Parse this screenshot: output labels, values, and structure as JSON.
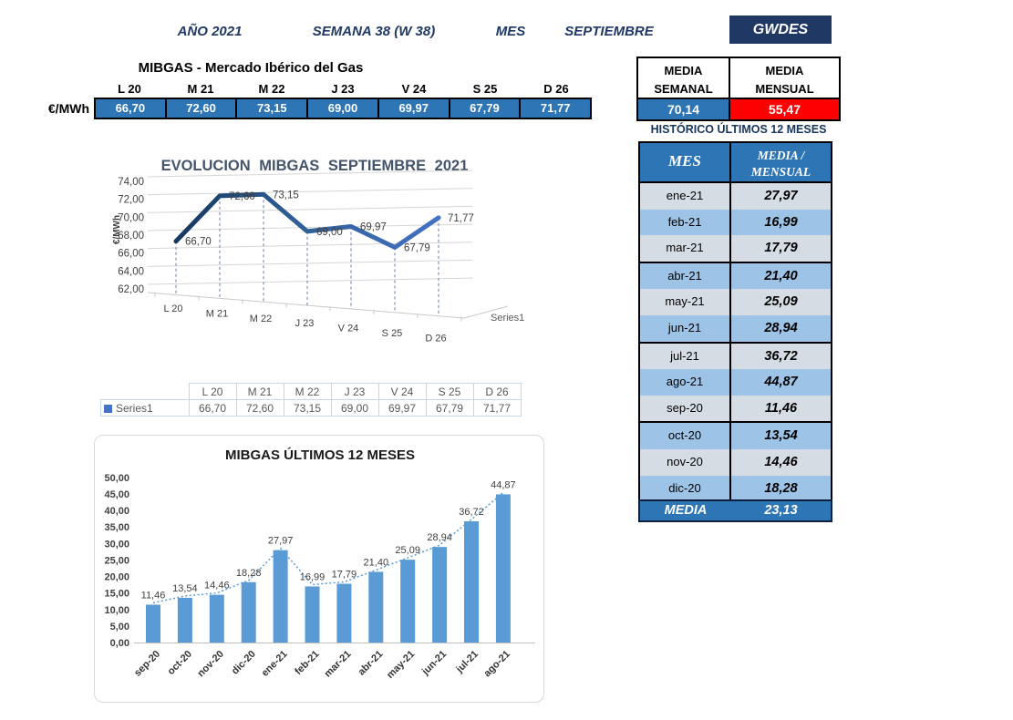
{
  "header": {
    "year": "AÑO 2021",
    "week": "SEMANA 38 (W 38)",
    "month_label": "MES",
    "month": "SEPTIEMBRE",
    "brand": "GWDES"
  },
  "weekly": {
    "title": "MIBGAS - Mercado Ibérico del Gas",
    "unit": "€/MWh",
    "days": [
      "L 20",
      "M 21",
      "M 22",
      "J 23",
      "V 24",
      "S 25",
      "D 26"
    ],
    "values": [
      "66,70",
      "72,60",
      "73,15",
      "69,00",
      "69,97",
      "67,79",
      "71,77"
    ]
  },
  "summary": {
    "weekly_l1": "MEDIA",
    "weekly_l2": "SEMANAL",
    "monthly_l1": "MEDIA",
    "monthly_l2": "MENSUAL",
    "weekly_value": "70,14",
    "monthly_value": "55,47"
  },
  "historic": {
    "title": "HISTÓRICO ÚLTIMOS 12 MESES",
    "col_mes": "MES",
    "col_media_l1": "MEDIA /",
    "col_media_l2": "MENSUAL",
    "rows": [
      {
        "month": "ene-21",
        "value": "27,97"
      },
      {
        "month": "feb-21",
        "value": "16,99"
      },
      {
        "month": "mar-21",
        "value": "17,79"
      },
      {
        "month": "abr-21",
        "value": "21,40"
      },
      {
        "month": "may-21",
        "value": "25,09"
      },
      {
        "month": "jun-21",
        "value": "28,94"
      },
      {
        "month": "jul-21",
        "value": "36,72"
      },
      {
        "month": "ago-21",
        "value": "44,87"
      },
      {
        "month": "sep-20",
        "value": "11,46"
      },
      {
        "month": "oct-20",
        "value": "13,54"
      },
      {
        "month": "nov-20",
        "value": "14,46"
      },
      {
        "month": "dic-20",
        "value": "18,28"
      }
    ],
    "media_label": "MEDIA",
    "media_value": "23,13"
  },
  "series_table": {
    "legend": "Series1",
    "days": [
      "L 20",
      "M 21",
      "M 22",
      "J 23",
      "V 24",
      "S 25",
      "D 26"
    ],
    "values": [
      "66,70",
      "72,60",
      "73,15",
      "69,00",
      "69,97",
      "67,79",
      "71,77"
    ]
  },
  "chart_data": [
    {
      "type": "line",
      "style": "3d-line",
      "title": "EVOLUCION MIBGAS SEPTIEMBRE 2021",
      "ylabel": "€/MWh",
      "categories": [
        "L 20",
        "M 21",
        "M 22",
        "J 23",
        "V 24",
        "S 25",
        "D 26"
      ],
      "series": [
        {
          "name": "Series1",
          "values": [
            66.7,
            72.6,
            73.15,
            69.0,
            69.97,
            67.79,
            71.77
          ]
        }
      ],
      "point_labels": [
        "66,70",
        "72,60",
        "73,15",
        "69,00",
        "69,97",
        "67,79",
        "71,77"
      ],
      "ylim": [
        62,
        74
      ],
      "ytick_step": 2,
      "legend": "Series1",
      "legend_position": "right",
      "grid": true
    },
    {
      "type": "bar",
      "title": "MIBGAS ÚLTIMOS 12 MESES",
      "categories": [
        "sep-20",
        "oct-20",
        "nov-20",
        "dic-20",
        "ene-21",
        "feb-21",
        "mar-21",
        "abr-21",
        "may-21",
        "jun-21",
        "jul-21",
        "ago-21"
      ],
      "values": [
        11.46,
        13.54,
        14.46,
        18.28,
        27.97,
        16.99,
        17.79,
        21.4,
        25.09,
        28.94,
        36.72,
        44.87
      ],
      "bar_labels": [
        "11,46",
        "13,54",
        "14,46",
        "18,28",
        "27,97",
        "16,99",
        "17,79",
        "21,40",
        "25,09",
        "28,94",
        "36,72",
        "44,87"
      ],
      "ylim": [
        0,
        50
      ],
      "ytick_step": 5,
      "trendline": "dotted",
      "grid": false
    }
  ],
  "colors": {
    "navy": "#1F3864",
    "cell_blue": "#2E75B6",
    "alert_red": "#FF0000",
    "row_gray": "#D6DCE4",
    "row_blue": "#9DC3E6",
    "bar_blue": "#5B9BD5",
    "line_blue": "#4472C4",
    "line_dark": "#17375E",
    "chart_title_gray": "#44546A"
  }
}
